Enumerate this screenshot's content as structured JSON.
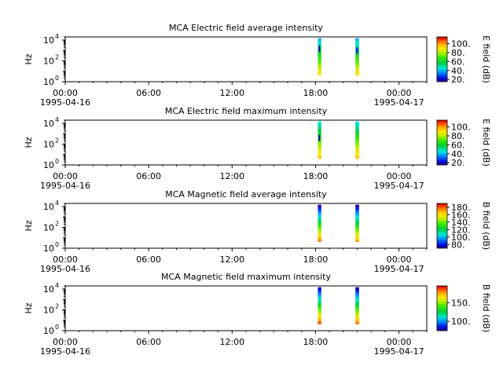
{
  "chart_data": [
    {
      "type": "heatmap",
      "title": "MCA  Electric field average intensity",
      "ylabel": "Hz",
      "y_scale": "log",
      "ylim": [
        1,
        20000
      ],
      "yticks": [
        {
          "base": "10",
          "exp": "0"
        },
        {
          "base": "10",
          "exp": "2"
        },
        {
          "base": "10",
          "exp": "4"
        }
      ],
      "xlim": [
        "1995-04-16 00:00",
        "1995-04-17 02:00"
      ],
      "xticks": [
        {
          "label": "00:00",
          "sub": "1995-04-16"
        },
        {
          "label": "06:00",
          "sub": ""
        },
        {
          "label": "12:00",
          "sub": ""
        },
        {
          "label": "18:00",
          "sub": ""
        },
        {
          "label": "00:00",
          "sub": "1995-04-17"
        }
      ],
      "minor_tick_hours": 1,
      "colorbar": {
        "label": "E field (dB)",
        "range": [
          15,
          115
        ],
        "ticks": [
          "20.",
          "40.",
          "60.",
          "80.",
          "100."
        ],
        "tick_values": [
          20,
          40,
          60,
          80,
          100
        ]
      },
      "bursts": [
        {
          "time_start": "18:10",
          "time_end": "18:25",
          "freq_min": 4,
          "freq_max": 15000,
          "intensity_low_freq": 90,
          "intensity_high_freq": 40,
          "spot": {
            "freq": 1500,
            "value": 15
          }
        },
        {
          "time_start": "20:52",
          "time_end": "21:08",
          "freq_min": 4,
          "freq_max": 15000,
          "intensity_low_freq": 90,
          "intensity_high_freq": 40,
          "spot": {
            "freq": 1000,
            "value": 25
          }
        }
      ]
    },
    {
      "type": "heatmap",
      "title": "MCA  Electric field maximum intensity",
      "ylabel": "Hz",
      "y_scale": "log",
      "ylim": [
        1,
        20000
      ],
      "yticks": [
        {
          "base": "10",
          "exp": "0"
        },
        {
          "base": "10",
          "exp": "2"
        },
        {
          "base": "10",
          "exp": "4"
        }
      ],
      "xlim": [
        "1995-04-16 00:00",
        "1995-04-17 02:00"
      ],
      "xticks": [
        {
          "label": "00:00",
          "sub": "1995-04-16"
        },
        {
          "label": "06:00",
          "sub": ""
        },
        {
          "label": "12:00",
          "sub": ""
        },
        {
          "label": "18:00",
          "sub": ""
        },
        {
          "label": "00:00",
          "sub": "1995-04-17"
        }
      ],
      "minor_tick_hours": 1,
      "colorbar": {
        "label": "E field (dB)",
        "range": [
          15,
          115
        ],
        "ticks": [
          "20.",
          "40.",
          "60.",
          "80.",
          "100."
        ],
        "tick_values": [
          20,
          40,
          60,
          80,
          100
        ]
      },
      "bursts": [
        {
          "time_start": "18:10",
          "time_end": "18:25",
          "freq_min": 4,
          "freq_max": 15000,
          "intensity_low_freq": 95,
          "intensity_high_freq": 45,
          "spot": {
            "freq": 400,
            "value": 18
          }
        },
        {
          "time_start": "20:52",
          "time_end": "21:08",
          "freq_min": 4,
          "freq_max": 15000,
          "intensity_low_freq": 95,
          "intensity_high_freq": 45,
          "spot": null
        }
      ]
    },
    {
      "type": "heatmap",
      "title": "MCA  Magnetic field average intensity",
      "ylabel": "Hz",
      "y_scale": "log",
      "ylim": [
        1,
        20000
      ],
      "yticks": [
        {
          "base": "10",
          "exp": "0"
        },
        {
          "base": "10",
          "exp": "2"
        },
        {
          "base": "10",
          "exp": "4"
        }
      ],
      "xlim": [
        "1995-04-16 00:00",
        "1995-04-17 02:00"
      ],
      "xticks": [
        {
          "label": "00:00",
          "sub": "1995-04-16"
        },
        {
          "label": "06:00",
          "sub": ""
        },
        {
          "label": "12:00",
          "sub": ""
        },
        {
          "label": "18:00",
          "sub": ""
        },
        {
          "label": "00:00",
          "sub": "1995-04-17"
        }
      ],
      "minor_tick_hours": 1,
      "colorbar": {
        "label": "B field (dB)",
        "range": [
          70,
          190
        ],
        "ticks": [
          "80.",
          "100.",
          "120.",
          "140.",
          "160.",
          "180."
        ],
        "tick_values": [
          80,
          100,
          120,
          140,
          160,
          180
        ]
      },
      "bursts": [
        {
          "time_start": "18:10",
          "time_end": "18:25",
          "freq_min": 4,
          "freq_max": 15000,
          "intensity_low_freq": 175,
          "intensity_high_freq": 75,
          "spot": null
        },
        {
          "time_start": "20:52",
          "time_end": "21:08",
          "freq_min": 4,
          "freq_max": 15000,
          "intensity_low_freq": 170,
          "intensity_high_freq": 75,
          "spot": null
        }
      ]
    },
    {
      "type": "heatmap",
      "title": "MCA  Magnetic field maximum intensity",
      "ylabel": "Hz",
      "y_scale": "log",
      "ylim": [
        1,
        20000
      ],
      "yticks": [
        {
          "base": "10",
          "exp": "0"
        },
        {
          "base": "10",
          "exp": "2"
        },
        {
          "base": "10",
          "exp": "4"
        }
      ],
      "xlim": [
        "1995-04-16 00:00",
        "1995-04-17 02:00"
      ],
      "xticks": [
        {
          "label": "00:00",
          "sub": "1995-04-16"
        },
        {
          "label": "06:00",
          "sub": ""
        },
        {
          "label": "12:00",
          "sub": ""
        },
        {
          "label": "18:00",
          "sub": ""
        },
        {
          "label": "00:00",
          "sub": "1995-04-17"
        }
      ],
      "minor_tick_hours": 1,
      "colorbar": {
        "label": "B field (dB)",
        "range": [
          75,
          195
        ],
        "ticks": [
          "100.",
          "150."
        ],
        "tick_values": [
          100,
          150
        ]
      },
      "bursts": [
        {
          "time_start": "18:10",
          "time_end": "18:25",
          "freq_min": 4,
          "freq_max": 15000,
          "intensity_low_freq": 185,
          "intensity_high_freq": 80,
          "spot": null
        },
        {
          "time_start": "20:52",
          "time_end": "21:08",
          "freq_min": 4,
          "freq_max": 15000,
          "intensity_low_freq": 180,
          "intensity_high_freq": 80,
          "spot": null
        }
      ]
    }
  ]
}
